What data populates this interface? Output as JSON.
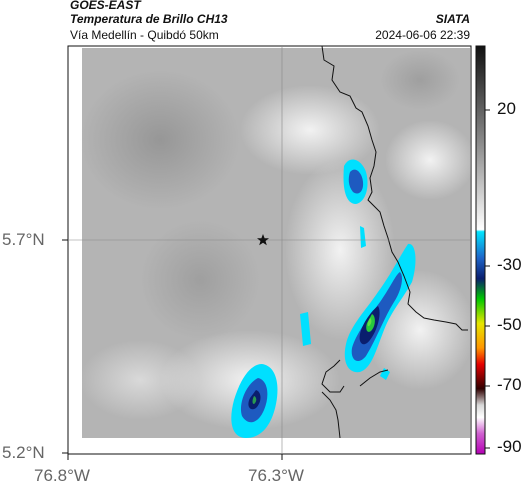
{
  "header": {
    "title": "GOES-EAST",
    "subtitle": "Temperatura de Brillo CH13",
    "region": "Vía Medellín - Quibdó 50km",
    "source": "SIATA",
    "timestamp": "2024-06-06 22:39"
  },
  "map": {
    "lat_labels": [
      "5.7°N",
      "5.2°N"
    ],
    "lon_labels": [
      "76.8°W",
      "76.3°W"
    ],
    "marker": "star",
    "background_color": "#b4b4b4",
    "coastline_color": "#111111"
  },
  "colorbar": {
    "tick_labels": [
      "20",
      "-30",
      "-50",
      "-70",
      "-90"
    ],
    "colors": [
      "#1a1a1a",
      "#ffffff",
      "#00e5ff",
      "#0a1e6e",
      "#00c800",
      "#e6e600",
      "#e60000",
      "#300000",
      "#ffffff",
      "#b400b4"
    ]
  }
}
